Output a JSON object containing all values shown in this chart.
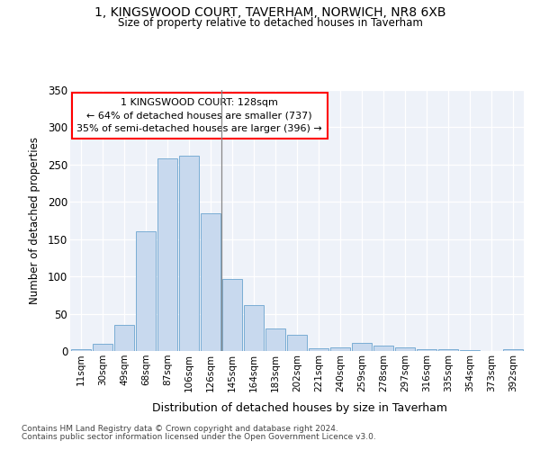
{
  "title": "1, KINGSWOOD COURT, TAVERHAM, NORWICH, NR8 6XB",
  "subtitle": "Size of property relative to detached houses in Taverham",
  "xlabel": "Distribution of detached houses by size in Taverham",
  "ylabel": "Number of detached properties",
  "bar_color": "#c8d9ee",
  "bar_edge_color": "#7aadd4",
  "highlight_line_color": "#888888",
  "background_color": "#eef2f9",
  "categories": [
    "11sqm",
    "30sqm",
    "49sqm",
    "68sqm",
    "87sqm",
    "106sqm",
    "126sqm",
    "145sqm",
    "164sqm",
    "183sqm",
    "202sqm",
    "221sqm",
    "240sqm",
    "259sqm",
    "278sqm",
    "297sqm",
    "316sqm",
    "335sqm",
    "354sqm",
    "373sqm",
    "392sqm"
  ],
  "values": [
    2,
    10,
    35,
    160,
    258,
    262,
    185,
    96,
    62,
    30,
    22,
    4,
    5,
    11,
    7,
    5,
    2,
    2,
    1,
    0,
    3
  ],
  "highlight_index": 6,
  "annotation_lines": [
    "1 KINGSWOOD COURT: 128sqm",
    "← 64% of detached houses are smaller (737)",
    "35% of semi-detached houses are larger (396) →"
  ],
  "ylim": [
    0,
    350
  ],
  "yticks": [
    0,
    50,
    100,
    150,
    200,
    250,
    300,
    350
  ],
  "footnote1": "Contains HM Land Registry data © Crown copyright and database right 2024.",
  "footnote2": "Contains public sector information licensed under the Open Government Licence v3.0."
}
